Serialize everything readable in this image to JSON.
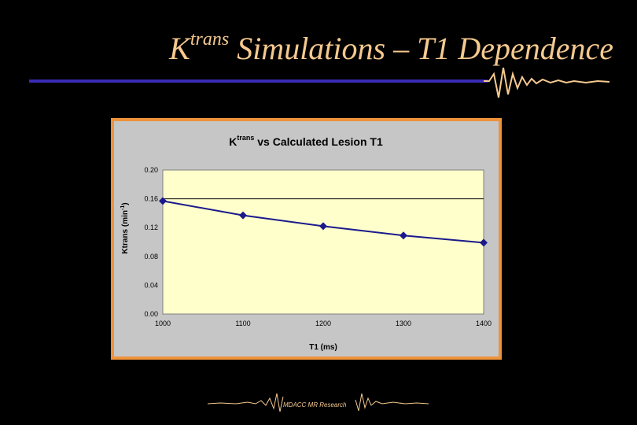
{
  "slide": {
    "title_main": "K",
    "title_super": "trans",
    "title_rest": " Simulations – T1 Dependence",
    "footer": "MDACC MR Research",
    "accent_color": "#f5c98f",
    "rule_color": "#3a2bb5"
  },
  "chart_data": {
    "type": "line",
    "title_main": "K",
    "title_super": "trans",
    "title_rest": " vs Calculated Lesion T1",
    "xlabel": "T1 (ms)",
    "ylabel_main": "Ktrans (min",
    "ylabel_super": "-1",
    "ylabel_end": ")",
    "x": [
      1000,
      1100,
      1200,
      1300,
      1400
    ],
    "y": [
      0.157,
      0.137,
      0.122,
      0.109,
      0.099
    ],
    "xlim": [
      1000,
      1400
    ],
    "ylim": [
      0,
      0.2
    ],
    "xticks": [
      "1000",
      "1100",
      "1200",
      "1300",
      "1400"
    ],
    "yticks": [
      "0.00",
      "0.04",
      "0.08",
      "0.12",
      "0.16",
      "0.20"
    ],
    "grid": "single horizontal line at 0.16",
    "plot_bg": "#ffffcc",
    "line_color": "#1a1a8c",
    "marker": "diamond"
  }
}
